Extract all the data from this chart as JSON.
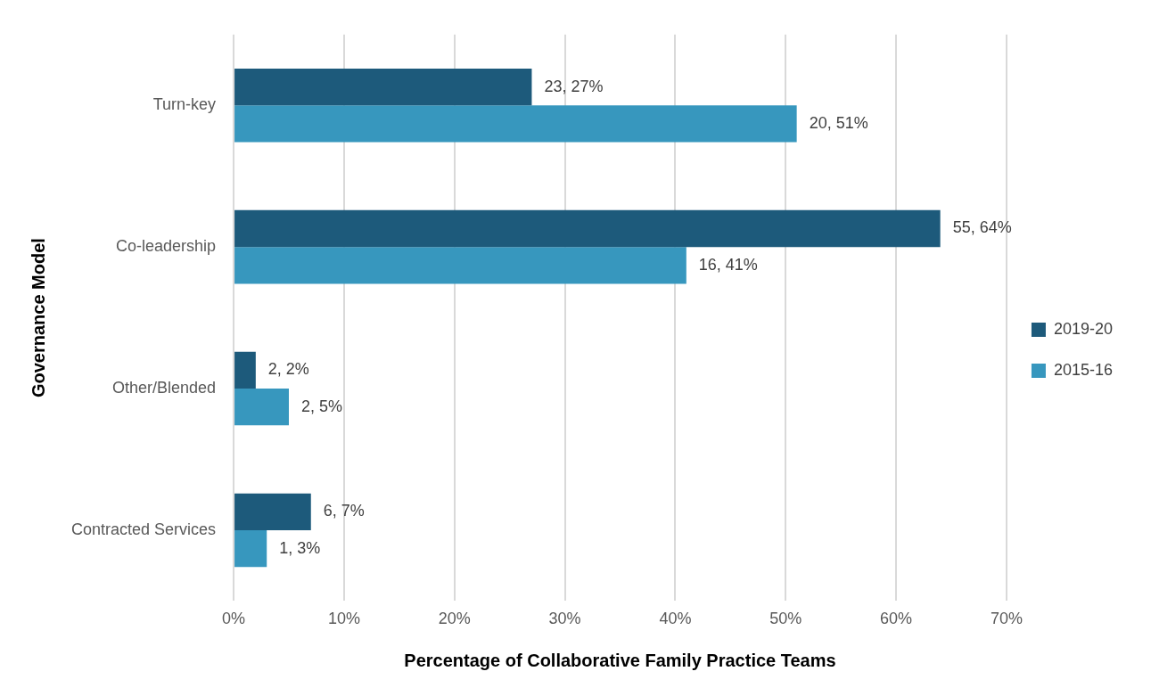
{
  "chart_data": {
    "type": "bar",
    "orientation": "horizontal",
    "xlabel": "Percentage of Collaborative Family Practice Teams",
    "ylabel": "Governance Model",
    "categories": [
      "Turn-key",
      "Co-leadership",
      "Other/Blended",
      "Contracted Services"
    ],
    "series": [
      {
        "name": "2019-20",
        "color": "#1d5a7b",
        "values": [
          27,
          64,
          2,
          7
        ],
        "value_labels": [
          "23, 27%",
          "55, 64%",
          "2, 2%",
          "6, 7%"
        ]
      },
      {
        "name": "2015-16",
        "color": "#3797be",
        "values": [
          51,
          41,
          5,
          3
        ],
        "value_labels": [
          "20, 51%",
          "16, 41%",
          "2, 5%",
          "1, 3%"
        ]
      }
    ],
    "xlim": [
      0,
      70
    ],
    "xticks": [
      {
        "value": 0,
        "label": "0%"
      },
      {
        "value": 10,
        "label": "10%"
      },
      {
        "value": 20,
        "label": "20%"
      },
      {
        "value": 30,
        "label": "30%"
      },
      {
        "value": 40,
        "label": "40%"
      },
      {
        "value": 50,
        "label": "50%"
      },
      {
        "value": 60,
        "label": "60%"
      },
      {
        "value": 70,
        "label": "70%"
      }
    ],
    "grid": "x",
    "legend": "right"
  }
}
